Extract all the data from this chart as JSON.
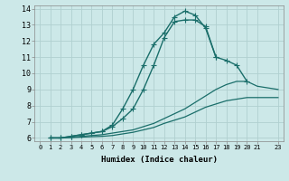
{
  "xlabel": "Humidex (Indice chaleur)",
  "bg_color": "#cce8e8",
  "grid_color": "#b0d0d0",
  "line_color": "#1a6e6a",
  "xlim": [
    -0.5,
    23.5
  ],
  "ylim": [
    5.8,
    14.2
  ],
  "xtick_labels": [
    "0",
    "1",
    "2",
    "3",
    "4",
    "5",
    "6",
    "7",
    "8",
    "9",
    "10",
    "11",
    "12",
    "13",
    "14",
    "15",
    "16",
    "17",
    "18",
    "19",
    "20",
    "21",
    "23"
  ],
  "xtick_vals": [
    0,
    1,
    2,
    3,
    4,
    5,
    6,
    7,
    8,
    9,
    10,
    11,
    12,
    13,
    14,
    15,
    16,
    17,
    18,
    19,
    20,
    21,
    23
  ],
  "ytick_vals": [
    6,
    7,
    8,
    9,
    10,
    11,
    12,
    13,
    14
  ],
  "lines": [
    {
      "x": [
        1,
        2,
        3,
        4,
        5,
        6,
        7,
        8,
        9,
        10,
        11,
        12,
        13,
        14,
        15,
        16,
        17,
        18,
        19,
        20
      ],
      "y": [
        6,
        6,
        6.1,
        6.2,
        6.3,
        6.4,
        6.8,
        7.8,
        9.0,
        10.5,
        11.8,
        12.5,
        13.5,
        13.85,
        13.6,
        12.8,
        11.0,
        10.8,
        10.5,
        9.5
      ],
      "marker": "+",
      "markersize": 4,
      "linewidth": 1.0,
      "linestyle": "-"
    },
    {
      "x": [
        1,
        2,
        3,
        4,
        5,
        6,
        7,
        8,
        9,
        10,
        11,
        12,
        13,
        14,
        15,
        16,
        17
      ],
      "y": [
        6,
        6,
        6.1,
        6.2,
        6.3,
        6.4,
        6.7,
        7.2,
        7.8,
        9.0,
        10.5,
        12.2,
        13.2,
        13.3,
        13.3,
        12.9,
        11.0
      ],
      "marker": "+",
      "markersize": 4,
      "linewidth": 1.0,
      "linestyle": "-"
    },
    {
      "x": [
        1,
        2,
        3,
        4,
        5,
        6,
        7,
        8,
        9,
        10,
        11,
        12,
        13,
        14,
        15,
        16,
        17,
        18,
        19,
        20,
        21,
        23
      ],
      "y": [
        6,
        6,
        6.05,
        6.1,
        6.15,
        6.2,
        6.3,
        6.4,
        6.5,
        6.7,
        6.9,
        7.2,
        7.5,
        7.8,
        8.2,
        8.6,
        9.0,
        9.3,
        9.5,
        9.5,
        9.2,
        9.0
      ],
      "marker": null,
      "markersize": 0,
      "linewidth": 0.9,
      "linestyle": "-"
    },
    {
      "x": [
        1,
        2,
        3,
        4,
        5,
        6,
        7,
        8,
        9,
        10,
        11,
        12,
        13,
        14,
        15,
        16,
        17,
        18,
        19,
        20,
        21,
        23
      ],
      "y": [
        6,
        6,
        6.02,
        6.05,
        6.08,
        6.1,
        6.15,
        6.25,
        6.35,
        6.5,
        6.65,
        6.9,
        7.1,
        7.3,
        7.6,
        7.9,
        8.1,
        8.3,
        8.4,
        8.5,
        8.5,
        8.5
      ],
      "marker": null,
      "markersize": 0,
      "linewidth": 0.9,
      "linestyle": "-"
    }
  ]
}
